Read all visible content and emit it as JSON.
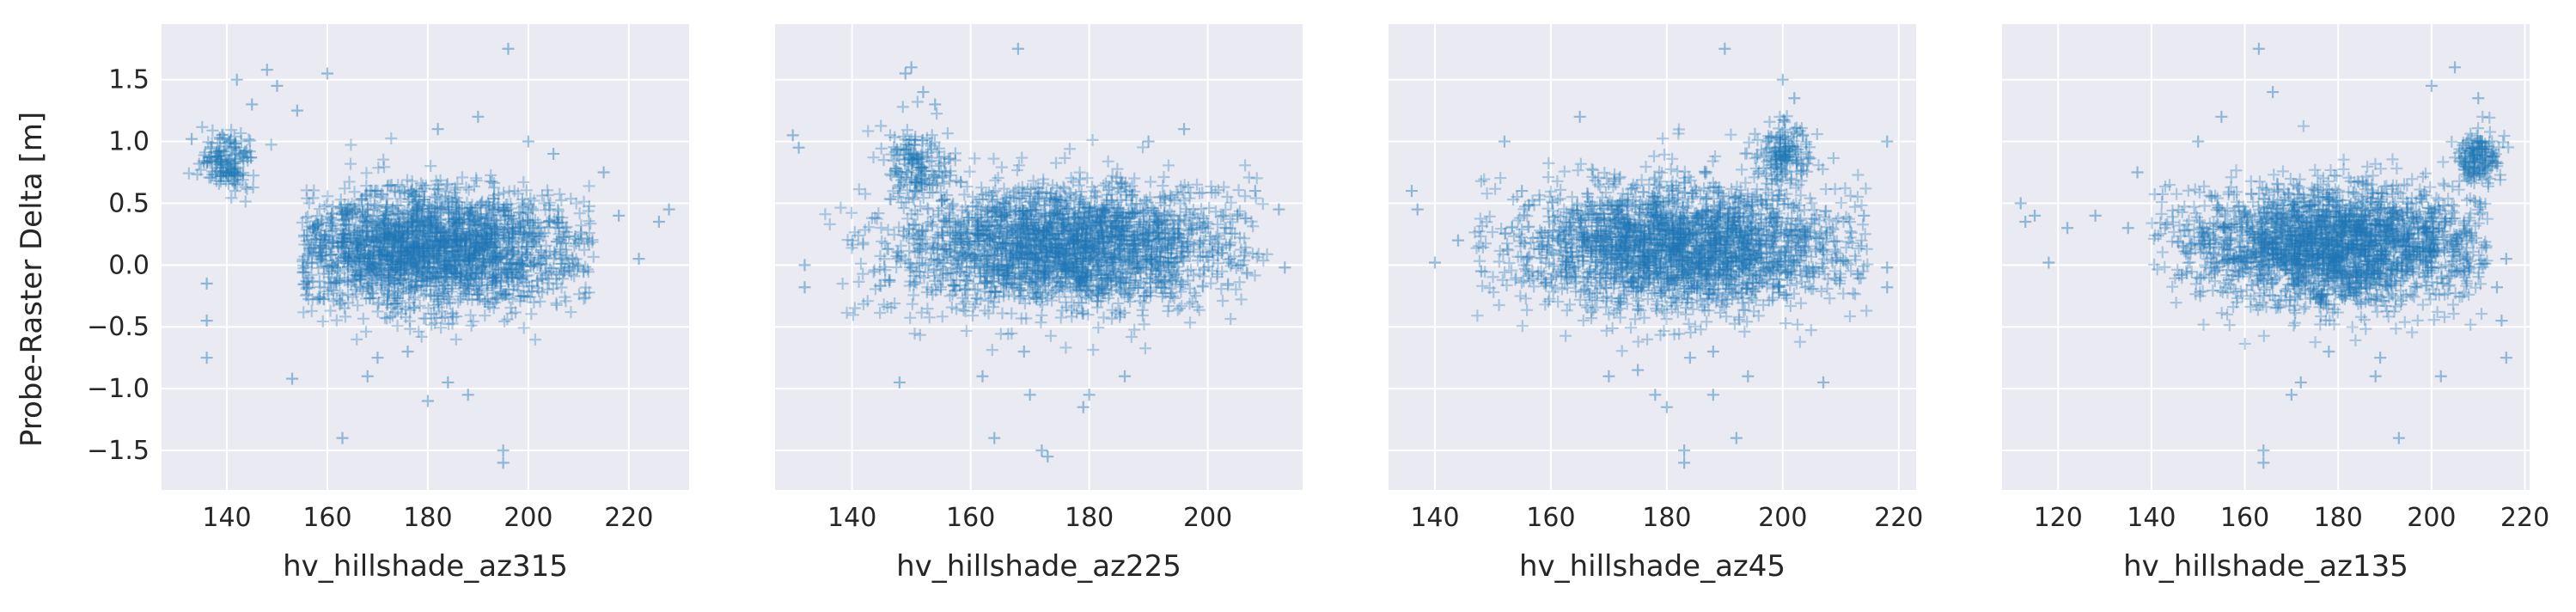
{
  "chart_data": [
    {
      "type": "scatter",
      "marker": "+",
      "color": "#1f77b4",
      "background": "#eaeaf2",
      "grid": true,
      "xlabel": "hv_hillshade_az315",
      "ylabel": "Probe-Raster Delta [m]",
      "xlim": [
        127,
        232
      ],
      "ylim": [
        -1.82,
        1.95
      ],
      "xticks": [
        140,
        160,
        180,
        200,
        220
      ],
      "yticks": [
        -1.5,
        -1.0,
        -0.5,
        0.0,
        0.5,
        1.0,
        1.5
      ],
      "ytick_labels": [
        "−1.5",
        "−1.0",
        "−0.5",
        "0.0",
        "0.5",
        "1.0",
        "1.5"
      ],
      "cluster": {
        "center_x": 180,
        "center_y": 0.13,
        "spread_x": 16,
        "spread_y": 0.24,
        "x_min": 155,
        "x_max": 213
      },
      "cluster_secondary": {
        "center_x": 140,
        "center_y": 0.85,
        "spread_x": 3,
        "spread_y": 0.12
      },
      "outliers": [
        [
          133,
          1.02
        ],
        [
          136,
          -0.15
        ],
        [
          136,
          -0.45
        ],
        [
          136,
          -0.75
        ],
        [
          142,
          1.5
        ],
        [
          145,
          1.3
        ],
        [
          148,
          1.58
        ],
        [
          150,
          1.45
        ],
        [
          153,
          -0.92
        ],
        [
          154,
          1.25
        ],
        [
          160,
          1.55
        ],
        [
          163,
          -1.4
        ],
        [
          168,
          -0.9
        ],
        [
          170,
          -0.75
        ],
        [
          176,
          -0.7
        ],
        [
          180,
          -1.1
        ],
        [
          182,
          1.1
        ],
        [
          184,
          -0.95
        ],
        [
          188,
          -1.05
        ],
        [
          190,
          1.2
        ],
        [
          195,
          -1.5
        ],
        [
          195,
          -1.6
        ],
        [
          196,
          1.75
        ],
        [
          200,
          1.0
        ],
        [
          205,
          0.9
        ],
        [
          215,
          0.75
        ],
        [
          218,
          0.4
        ],
        [
          222,
          0.05
        ],
        [
          226,
          0.35
        ],
        [
          228,
          0.45
        ]
      ]
    },
    {
      "type": "scatter",
      "marker": "+",
      "color": "#1f77b4",
      "background": "#eaeaf2",
      "grid": true,
      "xlabel": "hv_hillshade_az225",
      "xlim": [
        127,
        216
      ],
      "ylim": [
        -1.82,
        1.95
      ],
      "xticks": [
        140,
        160,
        180,
        200
      ],
      "cluster": {
        "center_x": 176,
        "center_y": 0.15,
        "spread_x": 14,
        "spread_y": 0.25,
        "x_min": 135,
        "x_max": 210
      },
      "cluster_secondary": {
        "center_x": 151,
        "center_y": 0.82,
        "spread_x": 2.5,
        "spread_y": 0.14
      },
      "outliers": [
        [
          130,
          1.05
        ],
        [
          131,
          0.95
        ],
        [
          132,
          0.0
        ],
        [
          132,
          -0.18
        ],
        [
          149,
          1.55
        ],
        [
          150,
          1.6
        ],
        [
          152,
          1.4
        ],
        [
          154,
          1.3
        ],
        [
          148,
          -0.95
        ],
        [
          162,
          -0.9
        ],
        [
          164,
          -1.4
        ],
        [
          168,
          1.75
        ],
        [
          169,
          -0.7
        ],
        [
          170,
          -1.05
        ],
        [
          172,
          -1.5
        ],
        [
          173,
          -1.55
        ],
        [
          179,
          -1.15
        ],
        [
          180,
          -1.05
        ],
        [
          186,
          -0.9
        ],
        [
          190,
          1.0
        ],
        [
          196,
          1.1
        ],
        [
          205,
          0.4
        ],
        [
          208,
          0.6
        ],
        [
          212,
          0.45
        ],
        [
          213,
          -0.02
        ]
      ]
    },
    {
      "type": "scatter",
      "marker": "+",
      "color": "#1f77b4",
      "background": "#eaeaf2",
      "grid": true,
      "xlabel": "hv_hillshade_az45",
      "xlim": [
        132,
        223
      ],
      "ylim": [
        -1.82,
        1.95
      ],
      "xticks": [
        140,
        160,
        180,
        200,
        220
      ],
      "cluster": {
        "center_x": 182,
        "center_y": 0.15,
        "spread_x": 14,
        "spread_y": 0.25,
        "x_min": 145,
        "x_max": 215
      },
      "cluster_secondary": {
        "center_x": 200,
        "center_y": 0.9,
        "spread_x": 2.5,
        "spread_y": 0.14
      },
      "outliers": [
        [
          136,
          0.6
        ],
        [
          137,
          0.45
        ],
        [
          140,
          0.02
        ],
        [
          144,
          0.2
        ],
        [
          148,
          -0.05
        ],
        [
          152,
          1.0
        ],
        [
          155,
          0.6
        ],
        [
          165,
          1.2
        ],
        [
          170,
          -0.9
        ],
        [
          175,
          -0.85
        ],
        [
          178,
          -1.05
        ],
        [
          180,
          -1.15
        ],
        [
          183,
          -1.5
        ],
        [
          183,
          -1.6
        ],
        [
          184,
          -0.75
        ],
        [
          188,
          -1.05
        ],
        [
          188,
          -0.7
        ],
        [
          190,
          1.75
        ],
        [
          192,
          -1.4
        ],
        [
          194,
          -0.9
        ],
        [
          200,
          1.5
        ],
        [
          202,
          1.35
        ],
        [
          207,
          -0.95
        ],
        [
          214,
          0.4
        ],
        [
          218,
          1.0
        ],
        [
          218,
          -0.02
        ],
        [
          218,
          -0.18
        ]
      ]
    },
    {
      "type": "scatter",
      "marker": "+",
      "color": "#1f77b4",
      "background": "#eaeaf2",
      "grid": true,
      "xlabel": "hv_hillshade_az135",
      "xlim": [
        108,
        221
      ],
      "ylim": [
        -1.82,
        1.95
      ],
      "xticks": [
        120,
        140,
        160,
        180,
        200,
        220
      ],
      "cluster": {
        "center_x": 180,
        "center_y": 0.15,
        "spread_x": 16,
        "spread_y": 0.24,
        "x_min": 140,
        "x_max": 212
      },
      "cluster_secondary": {
        "center_x": 210,
        "center_y": 0.85,
        "spread_x": 2.5,
        "spread_y": 0.13
      },
      "outliers": [
        [
          112,
          0.5
        ],
        [
          113,
          0.35
        ],
        [
          115,
          0.4
        ],
        [
          118,
          0.02
        ],
        [
          122,
          0.3
        ],
        [
          128,
          0.4
        ],
        [
          135,
          0.3
        ],
        [
          137,
          0.75
        ],
        [
          150,
          1.0
        ],
        [
          155,
          1.2
        ],
        [
          163,
          1.75
        ],
        [
          164,
          -1.5
        ],
        [
          164,
          -1.6
        ],
        [
          166,
          1.4
        ],
        [
          170,
          -1.05
        ],
        [
          172,
          -0.95
        ],
        [
          178,
          -0.7
        ],
        [
          188,
          -0.9
        ],
        [
          189,
          -0.75
        ],
        [
          193,
          -1.4
        ],
        [
          200,
          1.45
        ],
        [
          202,
          -0.9
        ],
        [
          205,
          1.6
        ],
        [
          210,
          1.35
        ],
        [
          214,
          -0.18
        ],
        [
          215,
          -0.45
        ],
        [
          216,
          -0.75
        ],
        [
          216,
          0.05
        ]
      ]
    }
  ]
}
